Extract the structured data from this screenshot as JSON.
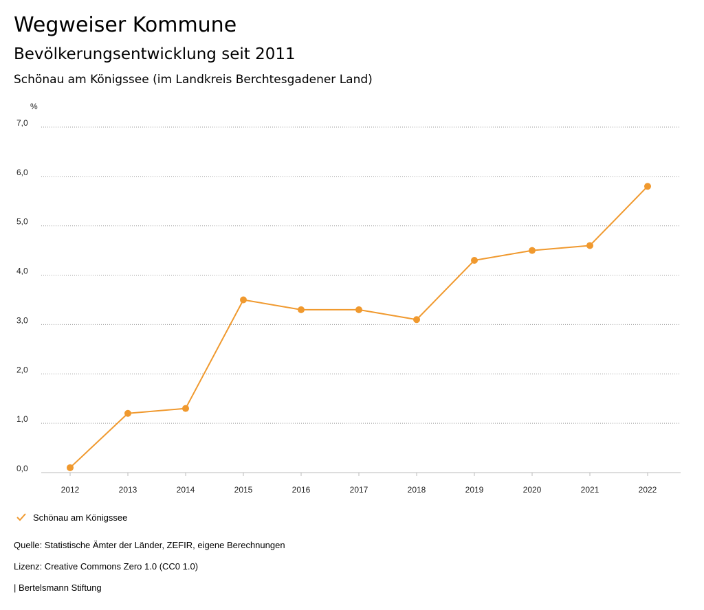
{
  "header": {
    "title": "Wegweiser Kommune",
    "subtitle": "Bevölkerungsentwicklung seit 2011",
    "place": "Schönau am Königssee (im Landkreis Berchtesgadener Land)"
  },
  "chart_data": {
    "type": "line",
    "unit_label": "%",
    "categories": [
      "2012",
      "2013",
      "2014",
      "2015",
      "2016",
      "2017",
      "2018",
      "2019",
      "2020",
      "2021",
      "2022"
    ],
    "series": [
      {
        "name": "Schönau am Königssee",
        "color": "#f0992e",
        "values": [
          0.1,
          1.2,
          1.3,
          3.5,
          3.3,
          3.3,
          3.1,
          4.3,
          4.5,
          4.6,
          5.8
        ]
      }
    ],
    "ylim": [
      0,
      7
    ],
    "yticks": [
      "0,0",
      "1,0",
      "2,0",
      "3,0",
      "4,0",
      "5,0",
      "6,0",
      "7,0"
    ],
    "grid": true
  },
  "legend": {
    "label": "Schönau am Königssee",
    "icon": "check-icon"
  },
  "footer": {
    "source": "Quelle: Statistische Ämter der Länder, ZEFIR, eigene Berechnungen",
    "license": "Lizenz: Creative Commons Zero 1.0 (CC0 1.0)",
    "publisher": "| Bertelsmann Stiftung"
  }
}
